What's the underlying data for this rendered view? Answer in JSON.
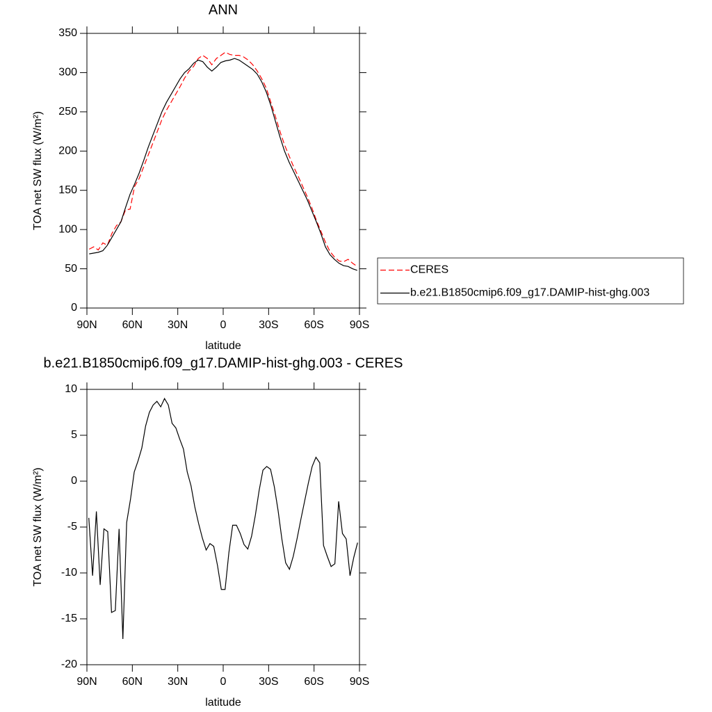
{
  "chart_data": [
    {
      "type": "line",
      "title": "ANN",
      "xlabel": "latitude",
      "ylabel": "TOA net SW flux (W/m²)",
      "xlim": [
        90,
        -90
      ],
      "ylim": [
        0,
        350
      ],
      "xticks": [
        {
          "value": 90,
          "label": "90N"
        },
        {
          "value": 60,
          "label": "60N"
        },
        {
          "value": 30,
          "label": "30N"
        },
        0,
        {
          "value": -30,
          "label": "30S"
        },
        {
          "value": -60,
          "label": "60S"
        },
        {
          "value": -90,
          "label": "90S"
        }
      ],
      "yticks": [
        0,
        50,
        100,
        150,
        200,
        250,
        300,
        350
      ],
      "legend": "outside-right",
      "x": [
        88.5,
        85.5,
        82.5,
        79.5,
        76.5,
        73.5,
        70.5,
        67.5,
        64.5,
        61.5,
        58.5,
        55.5,
        52.5,
        49.5,
        46.5,
        43.5,
        40.5,
        37.5,
        34.5,
        31.5,
        28.5,
        25.5,
        22.5,
        19.5,
        16.5,
        13.5,
        10.5,
        7.5,
        4.5,
        1.5,
        -1.5,
        -4.5,
        -7.5,
        -10.5,
        -13.5,
        -16.5,
        -19.5,
        -22.5,
        -25.5,
        -28.5,
        -31.5,
        -34.5,
        -37.5,
        -40.5,
        -43.5,
        -46.5,
        -49.5,
        -52.5,
        -55.5,
        -58.5,
        -61.5,
        -64.5,
        -67.5,
        -70.5,
        -73.5,
        -76.5,
        -79.5,
        -82.5,
        -85.5,
        -88.5
      ],
      "series": [
        {
          "name": "CERES",
          "color": "#ff0000",
          "dashed": true,
          "values": [
            75,
            78,
            74,
            83,
            80,
            95,
            105,
            110,
            125,
            126,
            155,
            165,
            180,
            195,
            210,
            225,
            240,
            252,
            262,
            272,
            282,
            293,
            302,
            308,
            318,
            322,
            318,
            310,
            318,
            322,
            326,
            323,
            322,
            322,
            320,
            316,
            310,
            302,
            292,
            280,
            262,
            244,
            225,
            208,
            194,
            180,
            168,
            155,
            142,
            128,
            112,
            98,
            84,
            72,
            65,
            60,
            59,
            62,
            57,
            53
          ]
        },
        {
          "name": "b.e21.B1850cmip6.f09_g17.DAMIP-hist-ghg.003",
          "color": "#000000",
          "dashed": false,
          "values": [
            69,
            70,
            71,
            73,
            80,
            90,
            100,
            110,
            128,
            145,
            158,
            172,
            188,
            205,
            220,
            235,
            250,
            262,
            272,
            282,
            292,
            300,
            305,
            312,
            316,
            314,
            307,
            302,
            307,
            313,
            315,
            316,
            318,
            316,
            312,
            308,
            304,
            298,
            288,
            275,
            258,
            238,
            218,
            200,
            186,
            174,
            162,
            150,
            138,
            124,
            110,
            95,
            78,
            68,
            62,
            57,
            54,
            53,
            50,
            48
          ]
        }
      ]
    },
    {
      "type": "line",
      "title": "b.e21.B1850cmip6.f09_g17.DAMIP-hist-ghg.003 - CERES",
      "xlabel": "latitude",
      "ylabel": "TOA net SW flux (W/m²)",
      "xlim": [
        90,
        -90
      ],
      "ylim": [
        -20,
        10
      ],
      "xticks": [
        {
          "value": 90,
          "label": "90N"
        },
        {
          "value": 60,
          "label": "60N"
        },
        {
          "value": 30,
          "label": "30N"
        },
        0,
        {
          "value": -30,
          "label": "30S"
        },
        {
          "value": -60,
          "label": "60S"
        },
        {
          "value": -90,
          "label": "90S"
        }
      ],
      "yticks": [
        -20,
        -15,
        -10,
        -5,
        0,
        5,
        10
      ],
      "x": [
        88.75,
        86.25,
        83.75,
        81.25,
        78.75,
        76.25,
        73.75,
        71.25,
        68.75,
        66.25,
        63.75,
        61.25,
        58.75,
        56.25,
        53.75,
        51.25,
        48.75,
        46.25,
        43.75,
        41.25,
        38.75,
        36.25,
        33.75,
        31.25,
        28.75,
        26.25,
        23.75,
        21.25,
        18.75,
        16.25,
        13.75,
        11.25,
        8.75,
        6.25,
        3.75,
        1.25,
        -1.25,
        -3.75,
        -6.25,
        -8.75,
        -11.25,
        -13.75,
        -16.25,
        -18.75,
        -21.25,
        -23.75,
        -26.25,
        -28.75,
        -31.25,
        -33.75,
        -36.25,
        -38.75,
        -41.25,
        -43.75,
        -46.25,
        -48.75,
        -51.25,
        -53.75,
        -56.25,
        -58.75,
        -61.25,
        -63.75,
        -66.25,
        -68.75,
        -71.25,
        -73.75,
        -76.25,
        -78.75,
        -81.25,
        -83.75,
        -86.25,
        -88.75
      ],
      "series": [
        {
          "color": "#000000",
          "dashed": false,
          "values": [
            -4,
            -10.3,
            -3.3,
            -11.3,
            -5.2,
            -5.5,
            -14.3,
            -14.1,
            -5.2,
            -17.2,
            -4.5,
            -2,
            1,
            2.2,
            3.6,
            6,
            7.5,
            8.3,
            8.7,
            8.1,
            9,
            8.3,
            6.3,
            5.8,
            4.6,
            3.5,
            1,
            -0.5,
            -2.8,
            -4.6,
            -6.2,
            -7.5,
            -6.8,
            -7.1,
            -9.2,
            -11.8,
            -11.8,
            -7.8,
            -4.8,
            -4.8,
            -5.7,
            -6.9,
            -7.4,
            -6,
            -3.7,
            -1,
            1.2,
            1.6,
            1.3,
            -0.6,
            -3.2,
            -6.3,
            -8.9,
            -9.6,
            -8.2,
            -6.3,
            -4.2,
            -2.2,
            -0.2,
            1.6,
            2.6,
            2,
            -7,
            -8.2,
            -9.3,
            -9,
            -2.2,
            -5.7,
            -6.3,
            -10.3,
            -8.3,
            -6.7
          ]
        }
      ]
    }
  ]
}
